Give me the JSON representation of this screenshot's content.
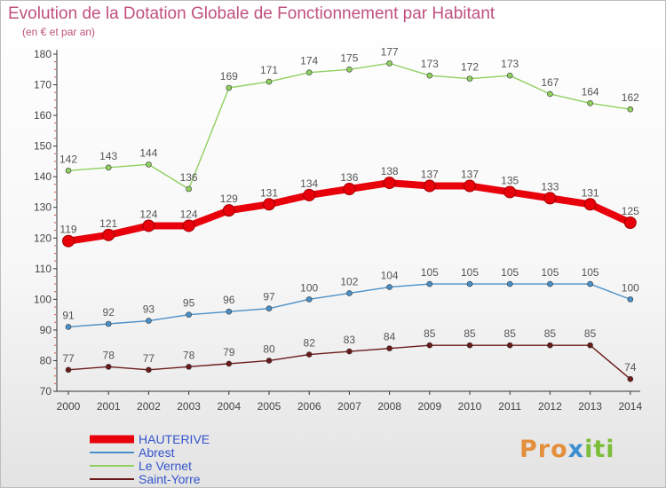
{
  "chart_data": {
    "type": "line",
    "title": "Evolution de la Dotation Globale de Fonctionnement par Habitant",
    "subtitle": "(en € et par an)",
    "xlabel": "",
    "ylabel": "",
    "ylim": [
      70,
      180
    ],
    "yticks": [
      70,
      80,
      90,
      100,
      110,
      120,
      130,
      140,
      150,
      160,
      170,
      180
    ],
    "categories": [
      "2000",
      "2001",
      "2002",
      "2003",
      "2004",
      "2005",
      "2006",
      "2007",
      "2008",
      "2009",
      "2010",
      "2011",
      "2012",
      "2013",
      "2014"
    ],
    "legend_position": "bottom-left",
    "series": [
      {
        "name": "HAUTERIVE",
        "color": "#e8000b",
        "highlight": true,
        "values": [
          119,
          121,
          124,
          124,
          129,
          131,
          134,
          136,
          138,
          137,
          137,
          135,
          133,
          131,
          125
        ]
      },
      {
        "name": "Abrest",
        "color": "#4a90c8",
        "highlight": false,
        "values": [
          91,
          92,
          93,
          95,
          96,
          97,
          100,
          102,
          104,
          105,
          105,
          105,
          105,
          105,
          100
        ]
      },
      {
        "name": "Le Vernet",
        "color": "#8fd060",
        "highlight": false,
        "values": [
          142,
          143,
          144,
          136,
          169,
          171,
          174,
          175,
          177,
          173,
          172,
          173,
          167,
          164,
          162
        ]
      },
      {
        "name": "Saint-Yorre",
        "color": "#6b1a1a",
        "highlight": false,
        "values": [
          77,
          78,
          77,
          78,
          79,
          80,
          82,
          83,
          84,
          85,
          85,
          85,
          85,
          85,
          74
        ]
      }
    ]
  },
  "logo": {
    "part1": "Pro",
    "part2": "x",
    "part3": "iti"
  }
}
